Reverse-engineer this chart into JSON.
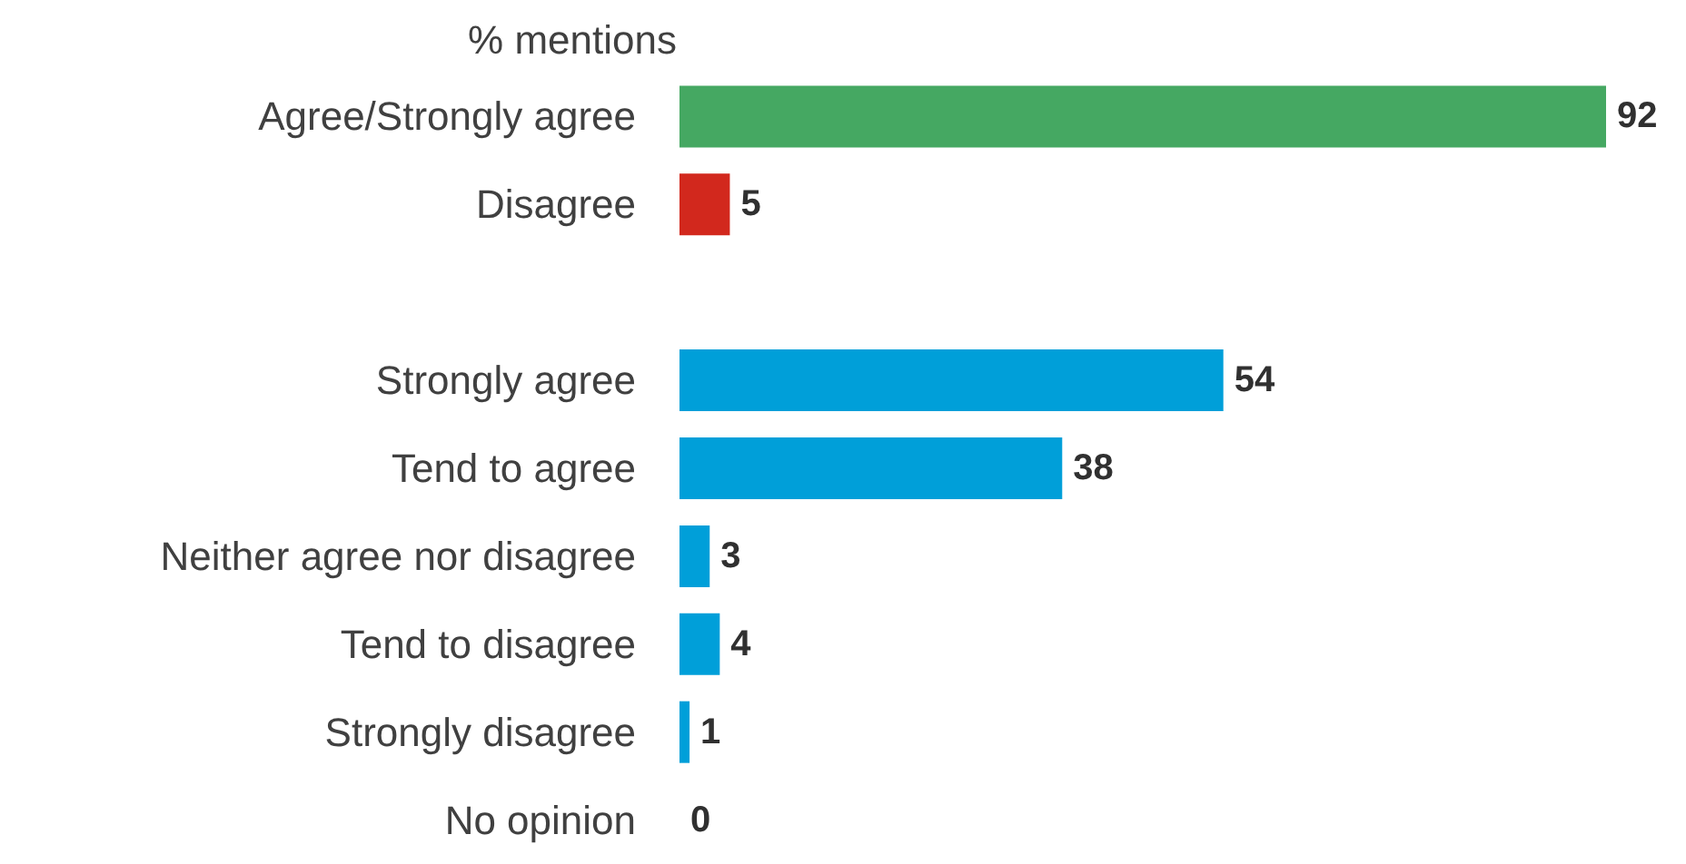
{
  "chart_data": {
    "type": "bar",
    "orientation": "horizontal",
    "title": "% mentions",
    "categories": [
      "Agree/Strongly agree",
      "Disagree",
      null,
      "Strongly agree",
      "Tend to agree",
      "Neither agree nor disagree",
      "Tend to disagree",
      "Strongly disagree",
      "No opinion"
    ],
    "values": [
      92,
      5,
      null,
      54,
      38,
      3,
      4,
      1,
      0
    ],
    "colors": [
      "#45a862",
      "#d2281d",
      null,
      "#009fd9",
      "#009fd9",
      "#009fd9",
      "#009fd9",
      "#009fd9",
      "#009fd9"
    ],
    "data_labels": true
  }
}
